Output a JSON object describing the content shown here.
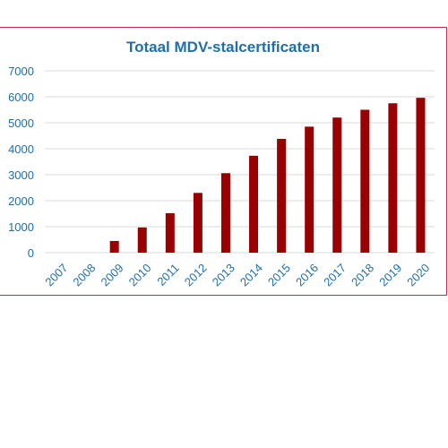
{
  "chart_data": {
    "type": "bar",
    "title": "Totaal MDV-stalcertificaten",
    "xlabel": "",
    "ylabel": "",
    "categories": [
      "2007",
      "2008",
      "2009",
      "2010",
      "2011",
      "2012",
      "2013",
      "2014",
      "2015",
      "2016",
      "2017",
      "2018",
      "2019",
      "2020"
    ],
    "values": [
      0,
      0,
      450,
      970,
      1520,
      2300,
      3060,
      3730,
      4380,
      4850,
      5200,
      5500,
      5750,
      5960
    ],
    "ylim": [
      0,
      7000
    ],
    "yticks": [
      0,
      1000,
      2000,
      3000,
      4000,
      5000,
      6000,
      7000
    ],
    "grid": true,
    "legend": "none"
  },
  "colors": {
    "bar": "#990000",
    "text": "#1f6fa8",
    "title": "#1f6fa8",
    "grid": "#d9d9d9",
    "frame": "#c0304a"
  }
}
